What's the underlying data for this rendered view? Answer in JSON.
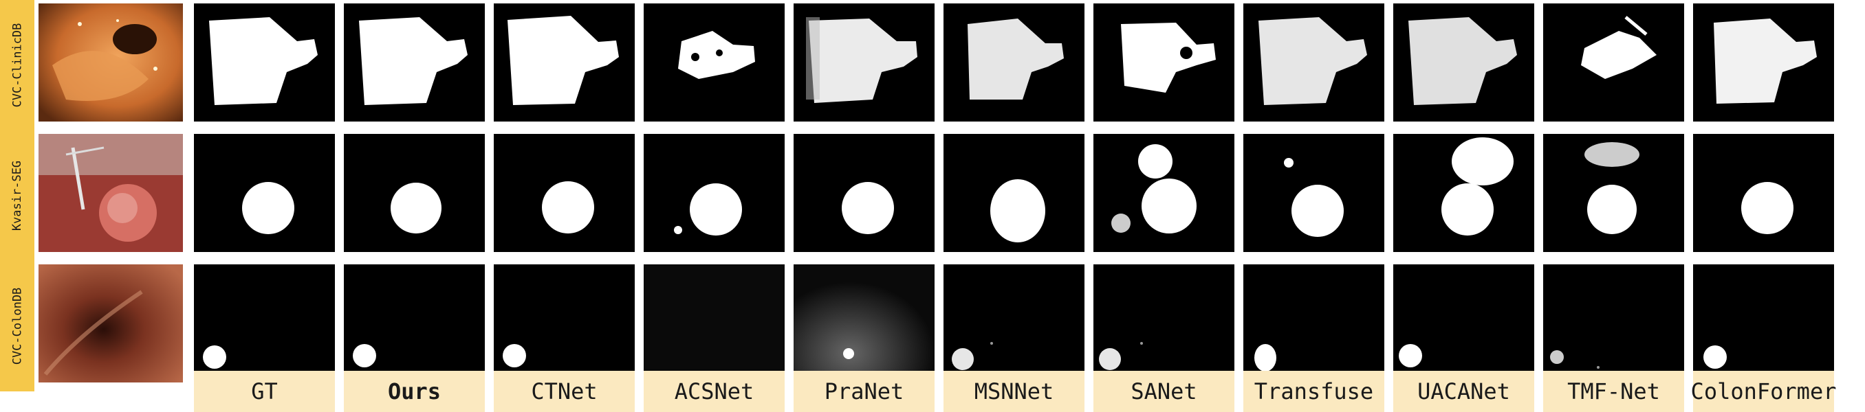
{
  "rows": [
    "CVC-ClinicDB",
    "Kvasir-SEG",
    "CVC-ColonDB"
  ],
  "columns": [
    "GT",
    "Ours",
    "CTNet",
    "ACSNet",
    "PraNet",
    "MSNNet",
    "SANet",
    "Transfuse",
    "UACANet",
    "TMF-Net",
    "ColonFormer"
  ],
  "bold_column": "Ours",
  "colors": {
    "label_row": "#f5c84a",
    "label_col": "#fbe9c0",
    "mask_fg": "#ffffff",
    "mask_bg": "#000000"
  }
}
